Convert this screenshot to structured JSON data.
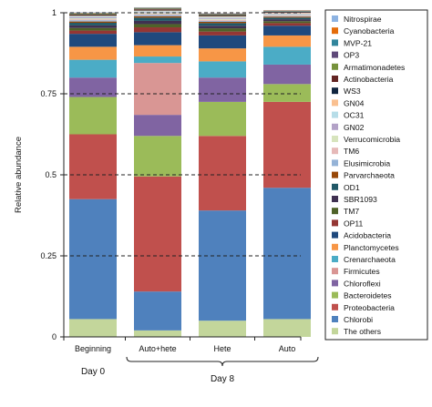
{
  "chart_data": {
    "type": "bar",
    "stacked": true,
    "ylabel": "Relative abundance",
    "ylim": [
      0,
      1
    ],
    "yticks": [
      "0",
      "0.25",
      "0.5",
      "0.75",
      "1"
    ],
    "ytick_values": [
      0,
      0.25,
      0.5,
      0.75,
      1
    ],
    "grid": "dashed horizontal",
    "legend_position": "right",
    "categories": [
      "Beginning",
      "Auto+hete",
      "Hete",
      "Auto"
    ],
    "groups": [
      {
        "label": "Day 0",
        "categories": [
          "Beginning"
        ]
      },
      {
        "label": "Day 8",
        "categories": [
          "Auto+hete",
          "Hete",
          "Auto"
        ]
      }
    ],
    "series": [
      {
        "name": "The others",
        "color": "#c3d69b",
        "values": [
          0.055,
          0.02,
          0.05,
          0.055
        ]
      },
      {
        "name": "Chlorobi",
        "color": "#4f81bd",
        "values": [
          0.37,
          0.12,
          0.34,
          0.405
        ]
      },
      {
        "name": "Proteobacteria",
        "color": "#c0504d",
        "values": [
          0.2,
          0.355,
          0.23,
          0.265
        ]
      },
      {
        "name": "Bacteroidetes",
        "color": "#9bbb59",
        "values": [
          0.115,
          0.125,
          0.105,
          0.055
        ]
      },
      {
        "name": "Chloroflexi",
        "color": "#8064a2",
        "values": [
          0.06,
          0.065,
          0.075,
          0.06
        ]
      },
      {
        "name": "Firmicutes",
        "color": "#d99694",
        "values": [
          0.0,
          0.16,
          0.0,
          0.0
        ]
      },
      {
        "name": "Crenarchaeota",
        "color": "#4bacc6",
        "values": [
          0.055,
          0.02,
          0.05,
          0.055
        ]
      },
      {
        "name": "Planctomycetes",
        "color": "#f79646",
        "values": [
          0.04,
          0.035,
          0.04,
          0.035
        ]
      },
      {
        "name": "Acidobacteria",
        "color": "#1f497d",
        "values": [
          0.04,
          0.04,
          0.04,
          0.03
        ]
      },
      {
        "name": "OP11",
        "color": "#943634",
        "values": [
          0.01,
          0.015,
          0.012,
          0.008
        ]
      },
      {
        "name": "TM7",
        "color": "#4f6228",
        "values": [
          0.008,
          0.01,
          0.01,
          0.006
        ]
      },
      {
        "name": "SBR1093",
        "color": "#3f3151",
        "values": [
          0.008,
          0.01,
          0.008,
          0.006
        ]
      },
      {
        "name": "OD1",
        "color": "#205867",
        "values": [
          0.008,
          0.01,
          0.008,
          0.005
        ]
      },
      {
        "name": "Parvarchaeota",
        "color": "#984807",
        "values": [
          0.004,
          0.004,
          0.004,
          0.003
        ]
      },
      {
        "name": "Elusimicrobia",
        "color": "#95b3d7",
        "values": [
          0.004,
          0.004,
          0.003,
          0.002
        ]
      },
      {
        "name": "TM6",
        "color": "#e6b9b8",
        "values": [
          0.003,
          0.003,
          0.003,
          0.002
        ]
      },
      {
        "name": "Verrucomicrobia",
        "color": "#d7e4bd",
        "values": [
          0.003,
          0.003,
          0.003,
          0.002
        ]
      },
      {
        "name": "GN02",
        "color": "#b3a2c7",
        "values": [
          0.003,
          0.003,
          0.003,
          0.002
        ]
      },
      {
        "name": "OC31",
        "color": "#b7dde8",
        "values": [
          0.003,
          0.003,
          0.003,
          0.002
        ]
      },
      {
        "name": "GN04",
        "color": "#fac090",
        "values": [
          0.002,
          0.002,
          0.002,
          0.002
        ]
      },
      {
        "name": "WS3",
        "color": "#10253f",
        "values": [
          0.002,
          0.002,
          0.002,
          0.002
        ]
      },
      {
        "name": "Actinobacteria",
        "color": "#632523",
        "values": [
          0.002,
          0.002,
          0.002,
          0.001
        ]
      },
      {
        "name": "Armatimonadetes",
        "color": "#76923c",
        "values": [
          0.002,
          0.002,
          0.002,
          0.001
        ]
      },
      {
        "name": "OP3",
        "color": "#5f497a",
        "values": [
          0.001,
          0.001,
          0.001,
          0.001
        ]
      },
      {
        "name": "MVP-21",
        "color": "#31859c",
        "values": [
          0.001,
          0.001,
          0.001,
          0.001
        ]
      },
      {
        "name": "Cyanobacteria",
        "color": "#e46c0a",
        "values": [
          0.001,
          0.001,
          0.001,
          0.001
        ]
      },
      {
        "name": "Nitrospirae",
        "color": "#8db3e2",
        "values": [
          0.001,
          0.001,
          0.001,
          0.001
        ]
      }
    ]
  }
}
